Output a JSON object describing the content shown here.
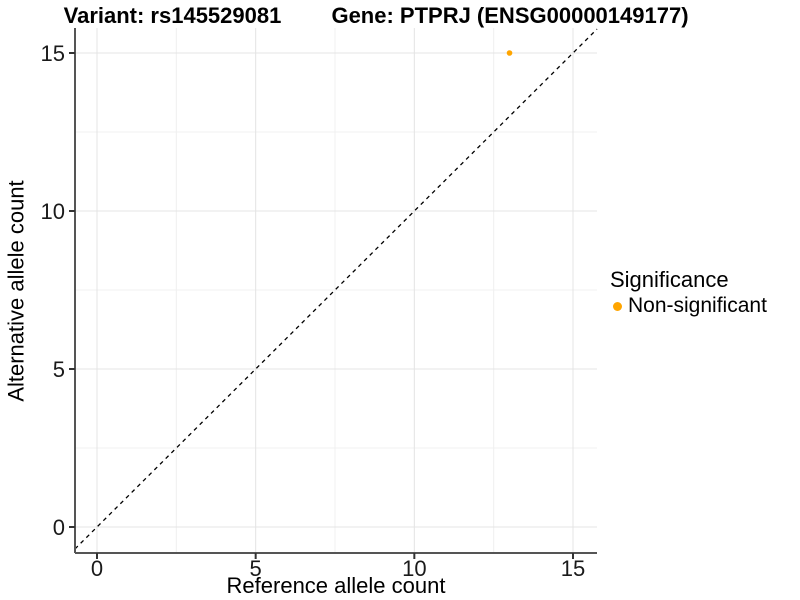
{
  "titles": {
    "variant": "Variant: rs145529081",
    "gene": "Gene: PTPRJ (ENSG00000149177)"
  },
  "chart_data": {
    "type": "scatter",
    "xlabel": "Reference allele count",
    "ylabel": "Alternative allele count",
    "xlim": [
      0,
      15
    ],
    "ylim": [
      0,
      15
    ],
    "xticks": [
      0,
      5,
      10,
      15
    ],
    "yticks": [
      0,
      5,
      10,
      15
    ],
    "xminor": [
      2.5,
      7.5,
      12.5
    ],
    "yminor": [
      2.5,
      7.5,
      12.5
    ],
    "grid": "major-and-minor",
    "points": [
      {
        "x": 13,
        "y": 15,
        "series": "Non-significant",
        "color": "#FFA500"
      }
    ],
    "reference_line": {
      "type": "identity",
      "slope": 1,
      "intercept": 0,
      "style": "dashed",
      "color": "#000000"
    },
    "legend": {
      "title": "Significance",
      "position": "right",
      "items": [
        {
          "label": "Non-significant",
          "color": "#FFA500"
        }
      ]
    }
  },
  "colors": {
    "point": "#FFA500",
    "axis_line": "#555555",
    "tick_mark": "#333333",
    "grid_major": "#E4E4E4",
    "grid_minor": "#F0F0F0",
    "background": "#FFFFFF"
  }
}
